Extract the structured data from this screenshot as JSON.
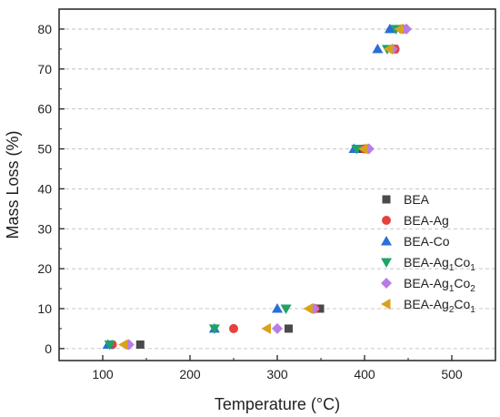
{
  "chart_data": {
    "type": "scatter",
    "xlabel": "Temperature (°C)",
    "ylabel": "Mass Loss (%)",
    "xlim": [
      50,
      550
    ],
    "ylim": [
      -3,
      85
    ],
    "xticks": [
      100,
      200,
      300,
      400,
      500
    ],
    "yticks": [
      0,
      10,
      20,
      30,
      40,
      50,
      60,
      70,
      80
    ],
    "grid": "horizontal dashed",
    "legend_position": "bottom-right",
    "series": [
      {
        "name": "BEA",
        "marker": "square",
        "color": "#4a4a4a",
        "points": [
          [
            143,
            1
          ],
          [
            313,
            5
          ],
          [
            349,
            10
          ],
          [
            398,
            50
          ],
          [
            434,
            75
          ],
          [
            445,
            80
          ]
        ]
      },
      {
        "name": "BEA-Ag",
        "marker": "circle",
        "color": "#e8403a",
        "points": [
          [
            111,
            1
          ],
          [
            250,
            5
          ],
          [
            343,
            10
          ],
          [
            400,
            50
          ],
          [
            435,
            75
          ],
          [
            443,
            80
          ]
        ]
      },
      {
        "name": "BEA-Co",
        "marker": "triangle-up",
        "color": "#2a6fd6",
        "points": [
          [
            106,
            1
          ],
          [
            228,
            5
          ],
          [
            300,
            10
          ],
          [
            388,
            50
          ],
          [
            415,
            75
          ],
          [
            429,
            80
          ]
        ]
      },
      {
        "name": "BEA-Ag1Co1",
        "name_parts": [
          "BEA-Ag",
          "1",
          "Co",
          "1"
        ],
        "marker": "triangle-down",
        "color": "#1fa366",
        "points": [
          [
            108,
            1
          ],
          [
            228,
            5
          ],
          [
            310,
            10
          ],
          [
            391,
            50
          ],
          [
            426,
            75
          ],
          [
            436,
            80
          ]
        ]
      },
      {
        "name": "BEA-Ag1Co2",
        "name_parts": [
          "BEA-Ag",
          "1",
          "Co",
          "2"
        ],
        "marker": "diamond",
        "color": "#b77de6",
        "points": [
          [
            130,
            1
          ],
          [
            300,
            5
          ],
          [
            342,
            10
          ],
          [
            405,
            50
          ],
          [
            432,
            75
          ],
          [
            448,
            80
          ]
        ]
      },
      {
        "name": "BEA-Ag2Co1",
        "name_parts": [
          "BEA-Ag",
          "2",
          "Co",
          "1"
        ],
        "marker": "triangle-left",
        "color": "#d9a21b",
        "points": [
          [
            124,
            1
          ],
          [
            288,
            5
          ],
          [
            336,
            10
          ],
          [
            399,
            50
          ],
          [
            428,
            75
          ],
          [
            440,
            80
          ]
        ]
      }
    ]
  }
}
